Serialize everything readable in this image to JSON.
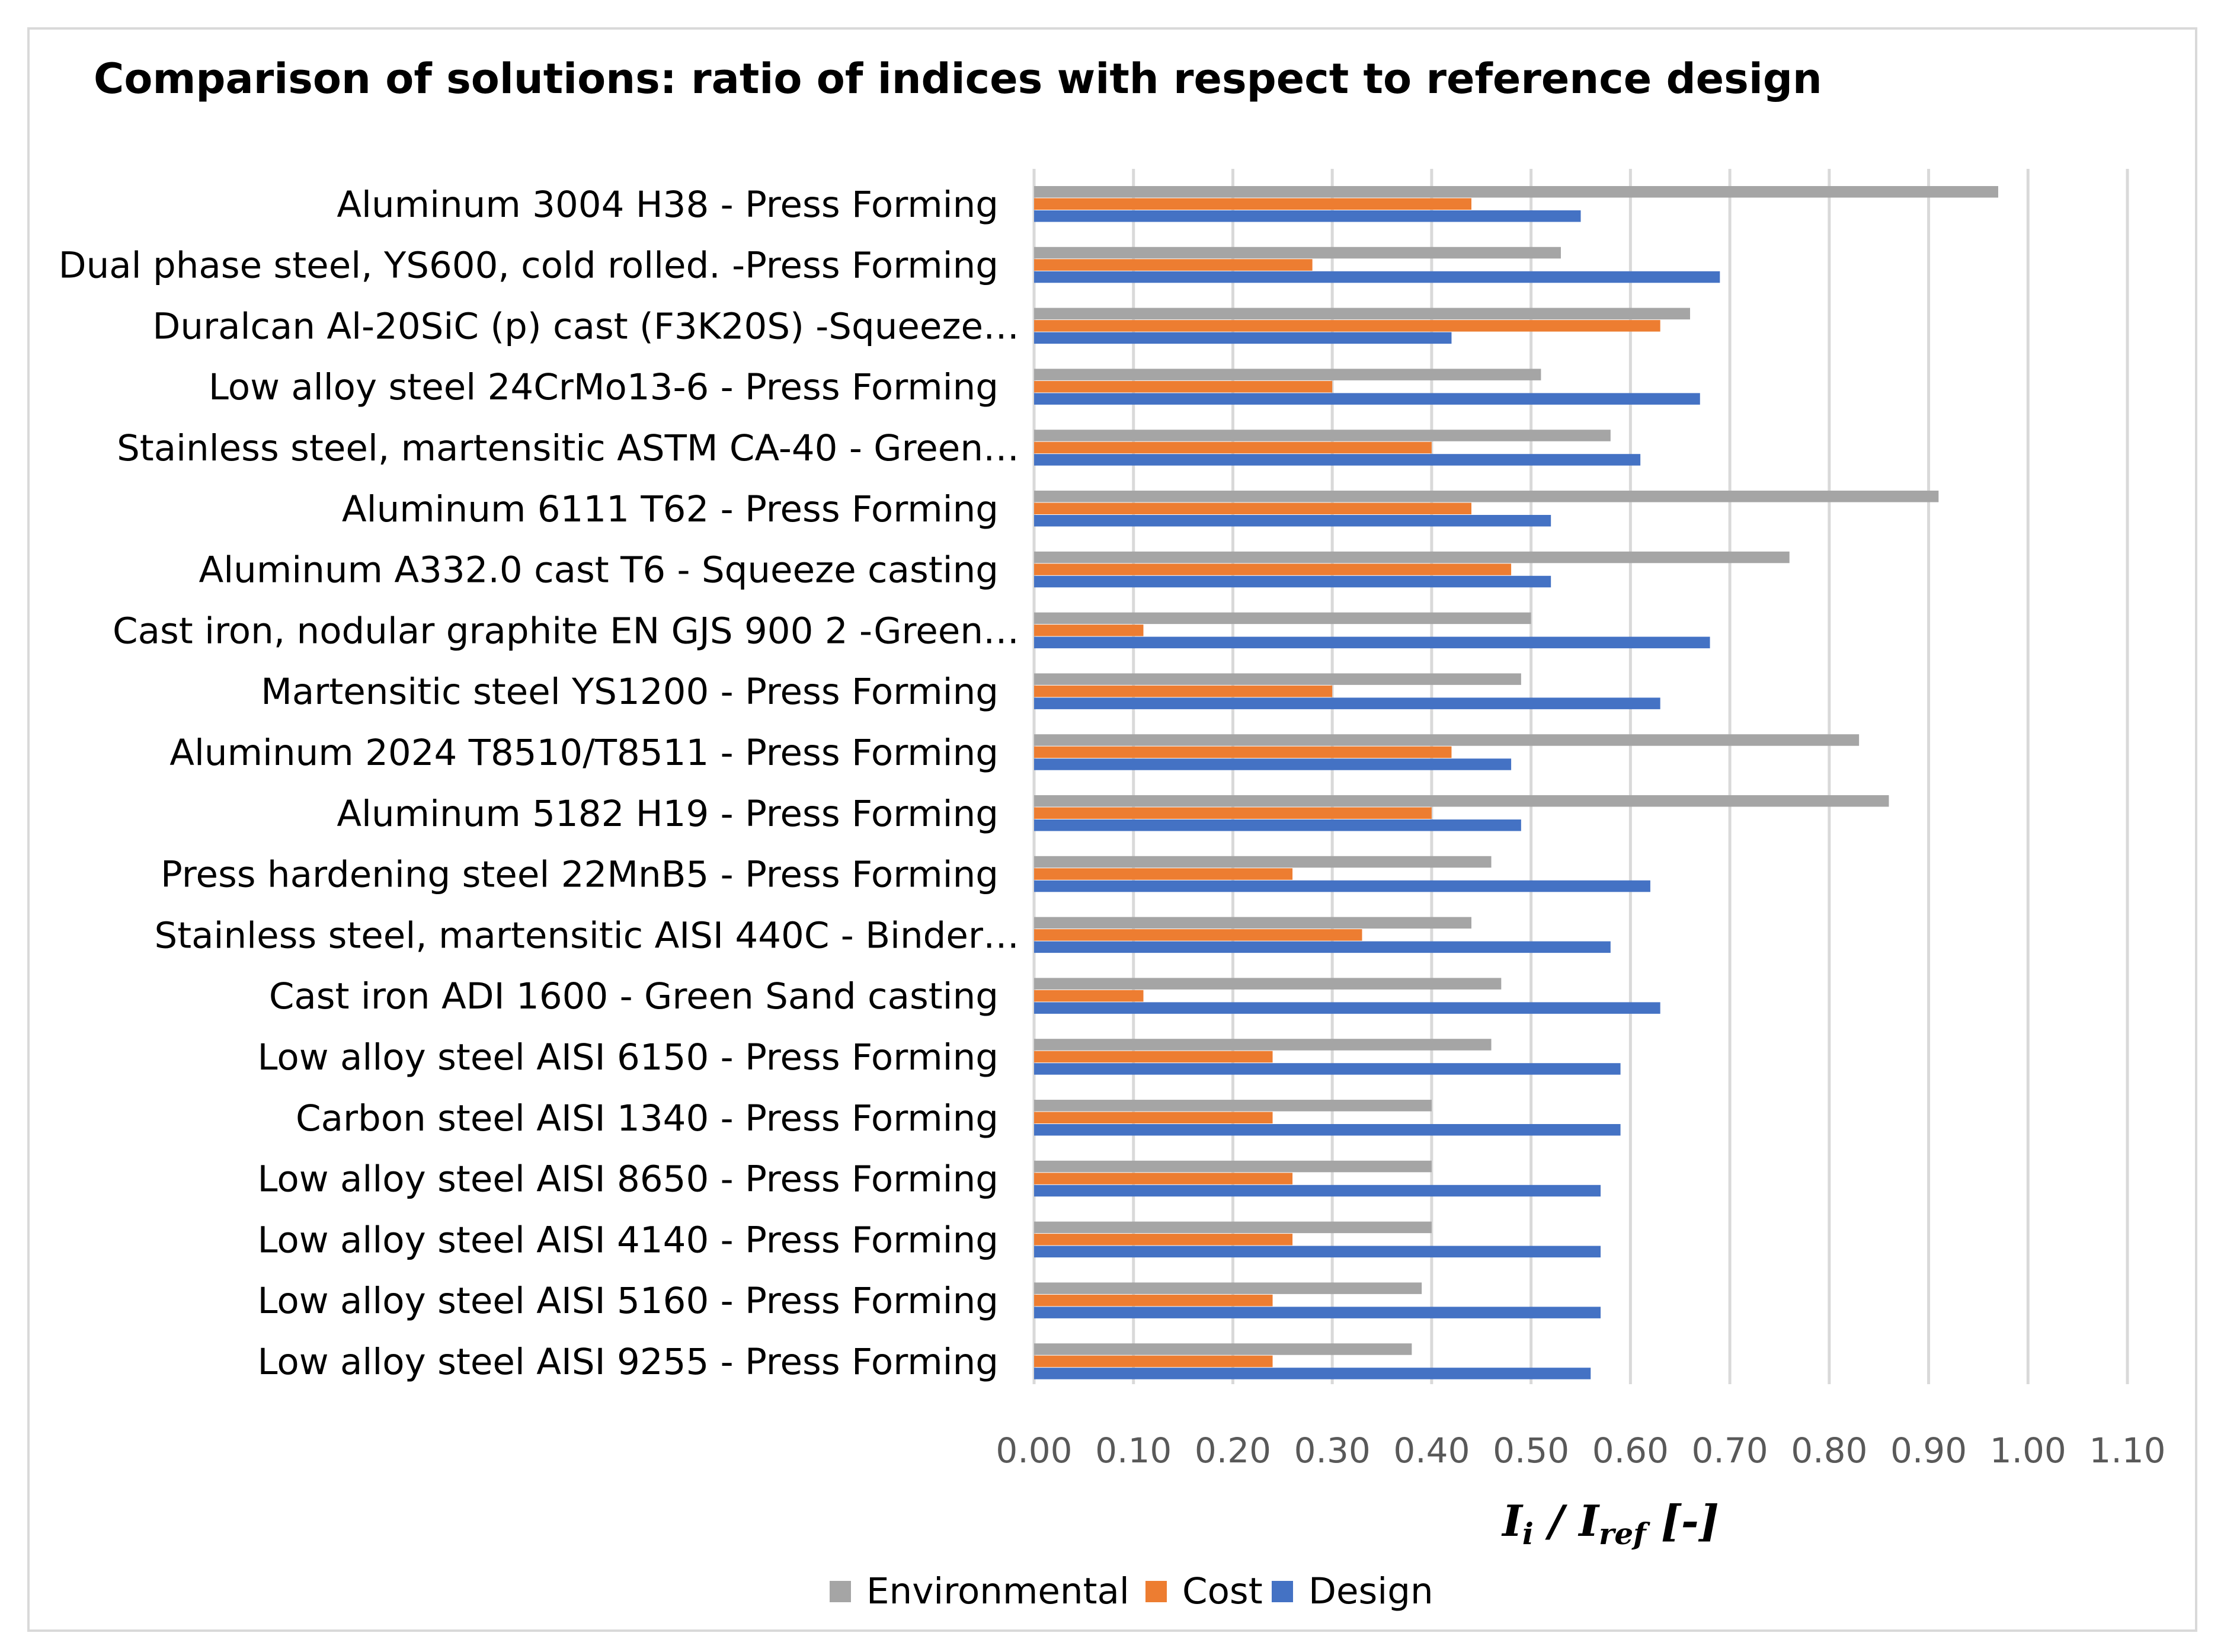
{
  "chart_data": {
    "type": "bar",
    "orientation": "horizontal",
    "title": "Comparison of solutions: ratio of indices with respect to reference design",
    "xlabel": {
      "main": "I",
      "main_sub": "i",
      "sep": " / ",
      "ref": "I",
      "ref_sub": "ref",
      "unit": " [-]"
    },
    "xlim": [
      0,
      1.1
    ],
    "xticks": [
      "0.00",
      "0.10",
      "0.20",
      "0.30",
      "0.40",
      "0.50",
      "0.60",
      "0.70",
      "0.80",
      "0.90",
      "1.00",
      "1.10"
    ],
    "grid": true,
    "legend_position": "bottom",
    "categories": [
      "Aluminum 3004 H38 - Press Forming",
      "Dual phase steel, YS600, cold rolled. -Press Forming",
      "Duralcan Al-20SiC (p) cast (F3K20S) -Squeeze…",
      "Low alloy steel 24CrMo13-6 - Press Forming",
      "Stainless steel, martensitic ASTM CA-40 - Green…",
      "Aluminum 6111 T62 - Press Forming",
      "Aluminum A332.0 cast T6 - Squeeze casting",
      "Cast iron, nodular graphite EN GJS 900 2 -Green…",
      "Martensitic steel YS1200 - Press Forming",
      "Aluminum 2024 T8510/T8511 - Press Forming",
      "Aluminum 5182 H19 - Press Forming",
      "Press hardening steel 22MnB5 - Press Forming",
      "Stainless steel, martensitic AISI 440C - Binder…",
      "Cast iron ADI 1600 - Green Sand casting",
      "Low alloy steel AISI 6150 - Press Forming",
      "Carbon steel AISI 1340 - Press Forming",
      "Low alloy steel AISI 8650 - Press Forming",
      "Low alloy steel AISI 4140 - Press Forming",
      "Low alloy steel AISI 5160 - Press Forming",
      "Low alloy steel AISI 9255 - Press Forming"
    ],
    "series": [
      {
        "name": "Environmental",
        "color": "#a5a5a5",
        "values": [
          0.97,
          0.53,
          0.66,
          0.51,
          0.58,
          0.91,
          0.76,
          0.5,
          0.49,
          0.83,
          0.86,
          0.46,
          0.44,
          0.47,
          0.46,
          0.4,
          0.4,
          0.4,
          0.39,
          0.38
        ]
      },
      {
        "name": "Cost",
        "color": "#ed7d31",
        "values": [
          0.44,
          0.28,
          0.63,
          0.3,
          0.4,
          0.44,
          0.48,
          0.11,
          0.3,
          0.42,
          0.4,
          0.26,
          0.33,
          0.11,
          0.24,
          0.24,
          0.26,
          0.26,
          0.24,
          0.24
        ]
      },
      {
        "name": "Design",
        "color": "#4472c4",
        "values": [
          0.55,
          0.69,
          0.42,
          0.67,
          0.61,
          0.52,
          0.52,
          0.68,
          0.63,
          0.48,
          0.49,
          0.62,
          0.58,
          0.63,
          0.59,
          0.59,
          0.57,
          0.57,
          0.57,
          0.56
        ]
      }
    ],
    "gridline_color": "#d9d9d9",
    "axis_label_color": "#595959"
  }
}
